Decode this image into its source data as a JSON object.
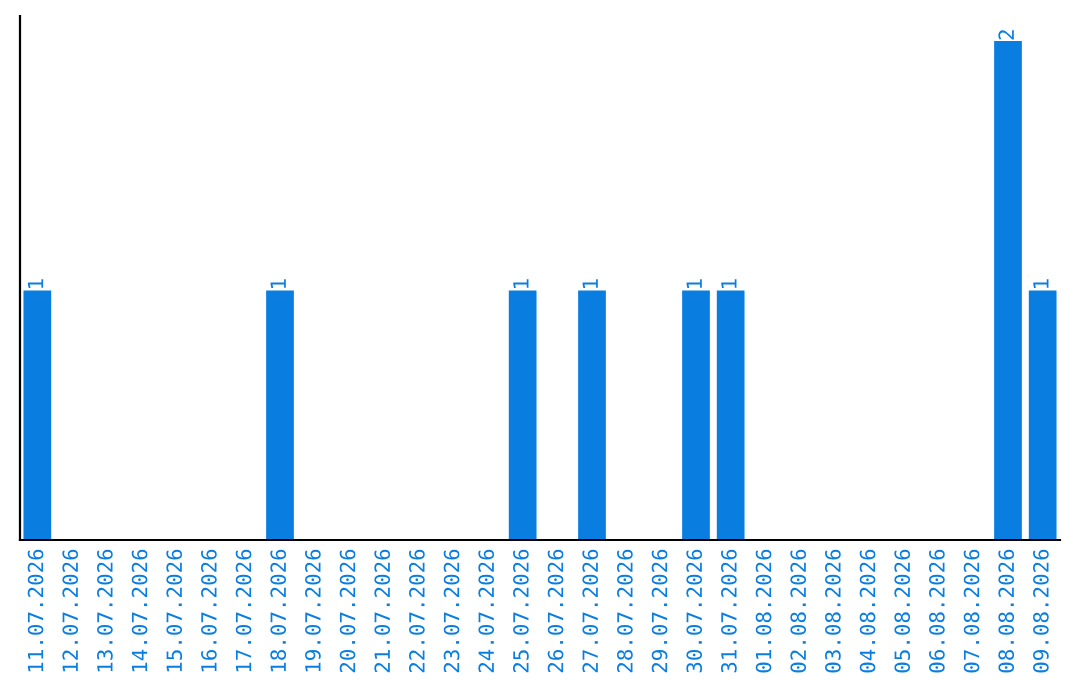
{
  "chart_data": {
    "type": "bar",
    "categories": [
      "11.07.2026",
      "12.07.2026",
      "13.07.2026",
      "14.07.2026",
      "15.07.2026",
      "16.07.2026",
      "17.07.2026",
      "18.07.2026",
      "19.07.2026",
      "20.07.2026",
      "21.07.2026",
      "22.07.2026",
      "23.07.2026",
      "24.07.2026",
      "25.07.2026",
      "26.07.2026",
      "27.07.2026",
      "28.07.2026",
      "29.07.2026",
      "30.07.2026",
      "31.07.2026",
      "01.08.2026",
      "02.08.2026",
      "03.08.2026",
      "04.08.2026",
      "05.08.2026",
      "06.08.2026",
      "07.08.2026",
      "08.08.2026",
      "09.08.2026"
    ],
    "values": [
      1,
      0,
      0,
      0,
      0,
      0,
      0,
      1,
      0,
      0,
      0,
      0,
      0,
      0,
      1,
      0,
      1,
      0,
      0,
      1,
      1,
      0,
      0,
      0,
      0,
      0,
      0,
      0,
      2,
      1
    ],
    "value_labels": [
      "1",
      null,
      null,
      null,
      null,
      null,
      null,
      "1",
      null,
      null,
      null,
      null,
      null,
      null,
      "1",
      null,
      "1",
      null,
      null,
      "1",
      "1",
      null,
      null,
      null,
      null,
      null,
      null,
      null,
      "2",
      "1"
    ],
    "color": "#0a7ee0",
    "tick_labels": "x",
    "grid": false
  }
}
